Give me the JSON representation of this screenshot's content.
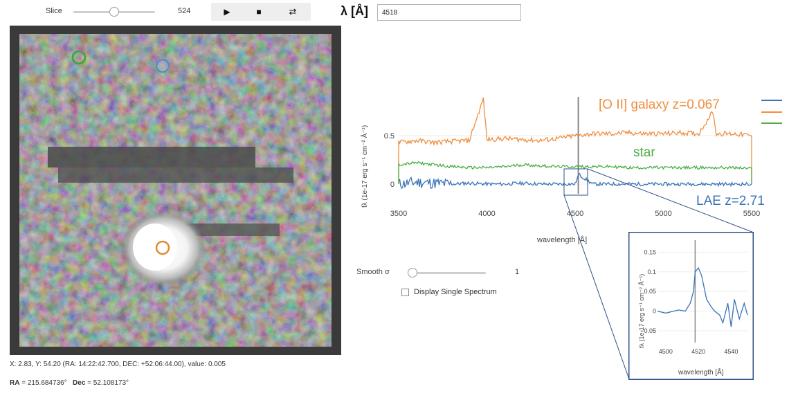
{
  "slice": {
    "label": "Slice",
    "value": "524",
    "slider_fraction": 0.5
  },
  "playback": {
    "play_icon": "play-icon",
    "stop_icon": "stop-icon",
    "loop_icon": "loop-icon"
  },
  "wavelength": {
    "label": "λ [Å]",
    "value": "4518"
  },
  "cube_image": {
    "markers": [
      {
        "name": "green-circle-marker",
        "color": "#3ea840"
      },
      {
        "name": "blue-circle-marker",
        "color": "#4f8fd1"
      },
      {
        "name": "orange-circle-marker",
        "color": "#e08a2e"
      }
    ]
  },
  "coord_readout": "X: 2.83, Y: 54.20 (RA: 14:22:42.700, DEC: +52:06:44.00), value: 0.005",
  "radec": {
    "ra_label": "RA",
    "ra_value": " = 215.684736°",
    "dec_label": "Dec",
    "dec_value": " = 52.108173°"
  },
  "spectrum_plot": {
    "ylabel": "fλ (1e-17 erg s⁻¹ cm⁻² Å⁻¹)",
    "xlabel": "wavelength [Å]",
    "xticks": [
      "3500",
      "4000",
      "4500",
      "5000",
      "5500"
    ],
    "yticks": [
      "0.5",
      "0"
    ],
    "annotations": {
      "galaxy": "[O II] galaxy z=0.067",
      "star": "star",
      "lae": "LAE z=2.71"
    },
    "colors": {
      "lae": "#3a73b8",
      "galaxy": "#ef8e3e",
      "star": "#4caf46"
    }
  },
  "inset_plot": {
    "ylabel": "fλ (1e-17 erg s⁻¹ cm⁻² Å⁻¹)",
    "xlabel": "wavelength [Å]",
    "xticks": [
      "4500",
      "4520",
      "4540"
    ],
    "yticks": [
      "0.15",
      "0.1",
      "0.05",
      "0",
      "−0.05"
    ]
  },
  "chart_data": {
    "type": "line",
    "xlabel": "wavelength [Å]",
    "ylabel": "fλ (1e-17 erg s⁻¹ cm⁻² Å⁻¹)",
    "xlim": [
      3500,
      5500
    ],
    "ylim": [
      -0.1,
      0.9
    ],
    "selected_wavelength": 4518,
    "series": [
      {
        "name": "LAE z=2.71",
        "x": [
          3500,
          3600,
          3700,
          3800,
          3900,
          4000,
          4100,
          4200,
          4300,
          4400,
          4500,
          4520,
          4600,
          4700,
          4800,
          4900,
          5000,
          5100,
          5200,
          5300,
          5400,
          5500
        ],
        "y": [
          0.0,
          0.02,
          0.01,
          0.0,
          0.01,
          0.0,
          0.0,
          0.01,
          0.0,
          0.0,
          0.0,
          0.1,
          0.0,
          0.0,
          0.0,
          0.0,
          0.0,
          0.0,
          0.0,
          0.0,
          0.0,
          0.0
        ]
      },
      {
        "name": "[O II] galaxy z=0.067",
        "x": [
          3500,
          3600,
          3700,
          3800,
          3900,
          3980,
          4000,
          4100,
          4200,
          4300,
          4400,
          4500,
          4600,
          4700,
          4800,
          4900,
          5000,
          5100,
          5200,
          5280,
          5300,
          5400,
          5500
        ],
        "y": [
          0.43,
          0.45,
          0.43,
          0.44,
          0.45,
          0.88,
          0.46,
          0.47,
          0.46,
          0.45,
          0.47,
          0.5,
          0.52,
          0.52,
          0.53,
          0.52,
          0.52,
          0.53,
          0.52,
          0.75,
          0.52,
          0.52,
          0.5
        ]
      },
      {
        "name": "star",
        "x": [
          3500,
          3600,
          3700,
          3800,
          3900,
          4000,
          4100,
          4200,
          4300,
          4400,
          4500,
          4600,
          4700,
          4800,
          4900,
          5000,
          5100,
          5200,
          5300,
          5400,
          5500
        ],
        "y": [
          0.2,
          0.22,
          0.2,
          0.18,
          0.17,
          0.17,
          0.18,
          0.2,
          0.19,
          0.18,
          0.18,
          0.18,
          0.18,
          0.17,
          0.17,
          0.17,
          0.17,
          0.17,
          0.17,
          0.17,
          0.16
        ]
      }
    ],
    "inset": {
      "xlim": [
        4495,
        4550
      ],
      "ylim": [
        -0.08,
        0.17
      ],
      "x": [
        4495,
        4500,
        4505,
        4508,
        4512,
        4515,
        4517,
        4518,
        4520,
        4522,
        4525,
        4528,
        4530,
        4533,
        4535,
        4538,
        4540,
        4542,
        4545,
        4548,
        4550
      ],
      "y": [
        0.0,
        -0.005,
        0.0,
        0.003,
        0.0,
        0.02,
        0.05,
        0.1,
        0.11,
        0.09,
        0.03,
        0.01,
        0.0,
        -0.01,
        -0.03,
        0.02,
        -0.04,
        0.03,
        -0.02,
        0.02,
        -0.01
      ]
    }
  }
}
